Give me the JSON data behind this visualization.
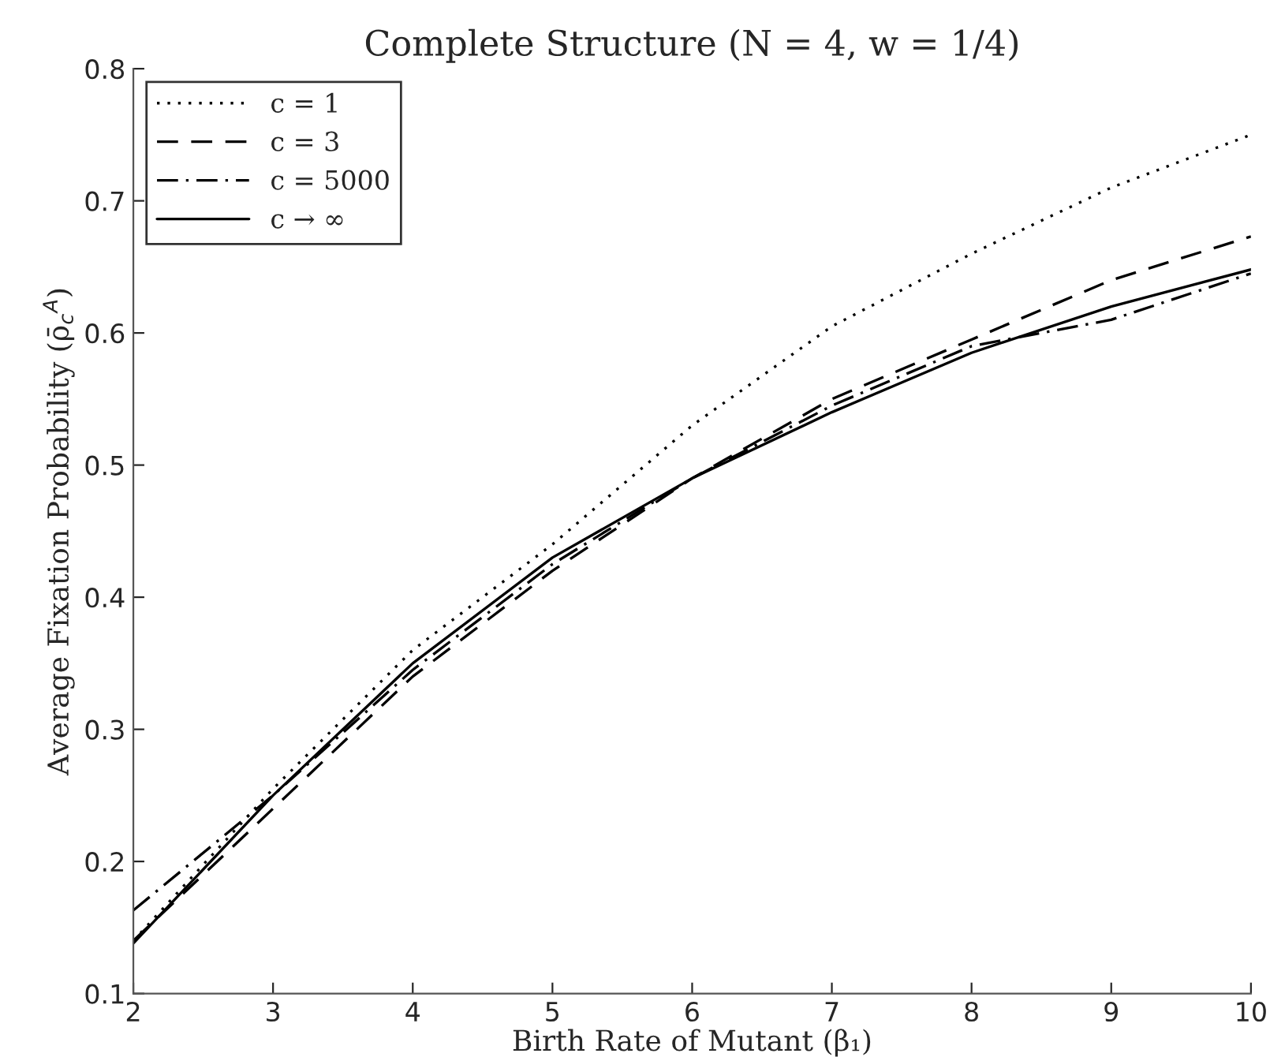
{
  "chart_data": {
    "type": "line",
    "title": "Complete Structure (N = 4, w = 1/4)",
    "xlabel": "Birth Rate of Mutant (β₁)",
    "ylabel": "Average Fixation Probability (ρ̄$_{c}$$^{A}$)",
    "x": [
      2,
      3,
      4,
      5,
      6,
      7,
      8,
      9,
      10
    ],
    "series": [
      {
        "name": "c = 1",
        "color": "#000000",
        "line_style": "dotted",
        "values": [
          0.14,
          0.255,
          0.36,
          0.44,
          0.53,
          0.605,
          0.66,
          0.71,
          0.75
        ]
      },
      {
        "name": "c = 3",
        "color": "#000000",
        "line_style": "dashed",
        "values": [
          0.14,
          0.24,
          0.34,
          0.42,
          0.49,
          0.55,
          0.595,
          0.64,
          0.673
        ]
      },
      {
        "name": "c = 5000",
        "color": "#000000",
        "line_style": "dashdot",
        "values": [
          0.163,
          0.25,
          0.345,
          0.425,
          0.49,
          0.545,
          0.59,
          0.61,
          0.645
        ]
      },
      {
        "name": "c → ∞",
        "color": "#000000",
        "line_style": "solid",
        "values": [
          0.138,
          0.25,
          0.35,
          0.43,
          0.49,
          0.54,
          0.585,
          0.62,
          0.648
        ]
      }
    ],
    "xlim": [
      2,
      10
    ],
    "ylim": [
      0.1,
      0.8
    ],
    "xticks": [
      2,
      3,
      4,
      5,
      6,
      7,
      8,
      9,
      10
    ],
    "yticks": [
      0.1,
      0.2,
      0.3,
      0.4,
      0.5,
      0.6,
      0.7,
      0.8
    ],
    "legend": "top left",
    "grid": false
  }
}
